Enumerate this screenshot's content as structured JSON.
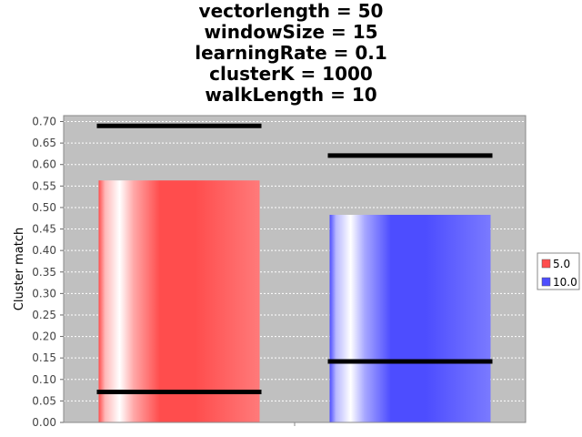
{
  "title_lines": [
    "vectorlength = 50",
    "windowSize = 15",
    "learningRate = 0.1",
    "clusterK = 1000",
    "walkLength = 10"
  ],
  "chart_data": {
    "type": "bar",
    "title": "vectorlength = 50\nwindowSize = 15\nlearningRate = 0.1\nclusterK = 1000\nwalkLength = 10",
    "xlabel": "",
    "ylabel": "Cluster match",
    "ylim": [
      0,
      0.7
    ],
    "yticks": [
      "0.00",
      "0.05",
      "0.10",
      "0.15",
      "0.20",
      "0.25",
      "0.30",
      "0.35",
      "0.40",
      "0.45",
      "0.50",
      "0.55",
      "0.60",
      "0.65",
      "0.70"
    ],
    "grid": true,
    "legend_position": "right",
    "series": [
      {
        "name": "5.0",
        "value": 0.563,
        "interval": [
          0.071,
          0.69
        ],
        "color": "#ff4d4d"
      },
      {
        "name": "10.0",
        "value": 0.483,
        "interval": [
          0.142,
          0.621
        ],
        "color": "#4d4dff"
      }
    ],
    "plot_background": "#c0c0c0"
  }
}
